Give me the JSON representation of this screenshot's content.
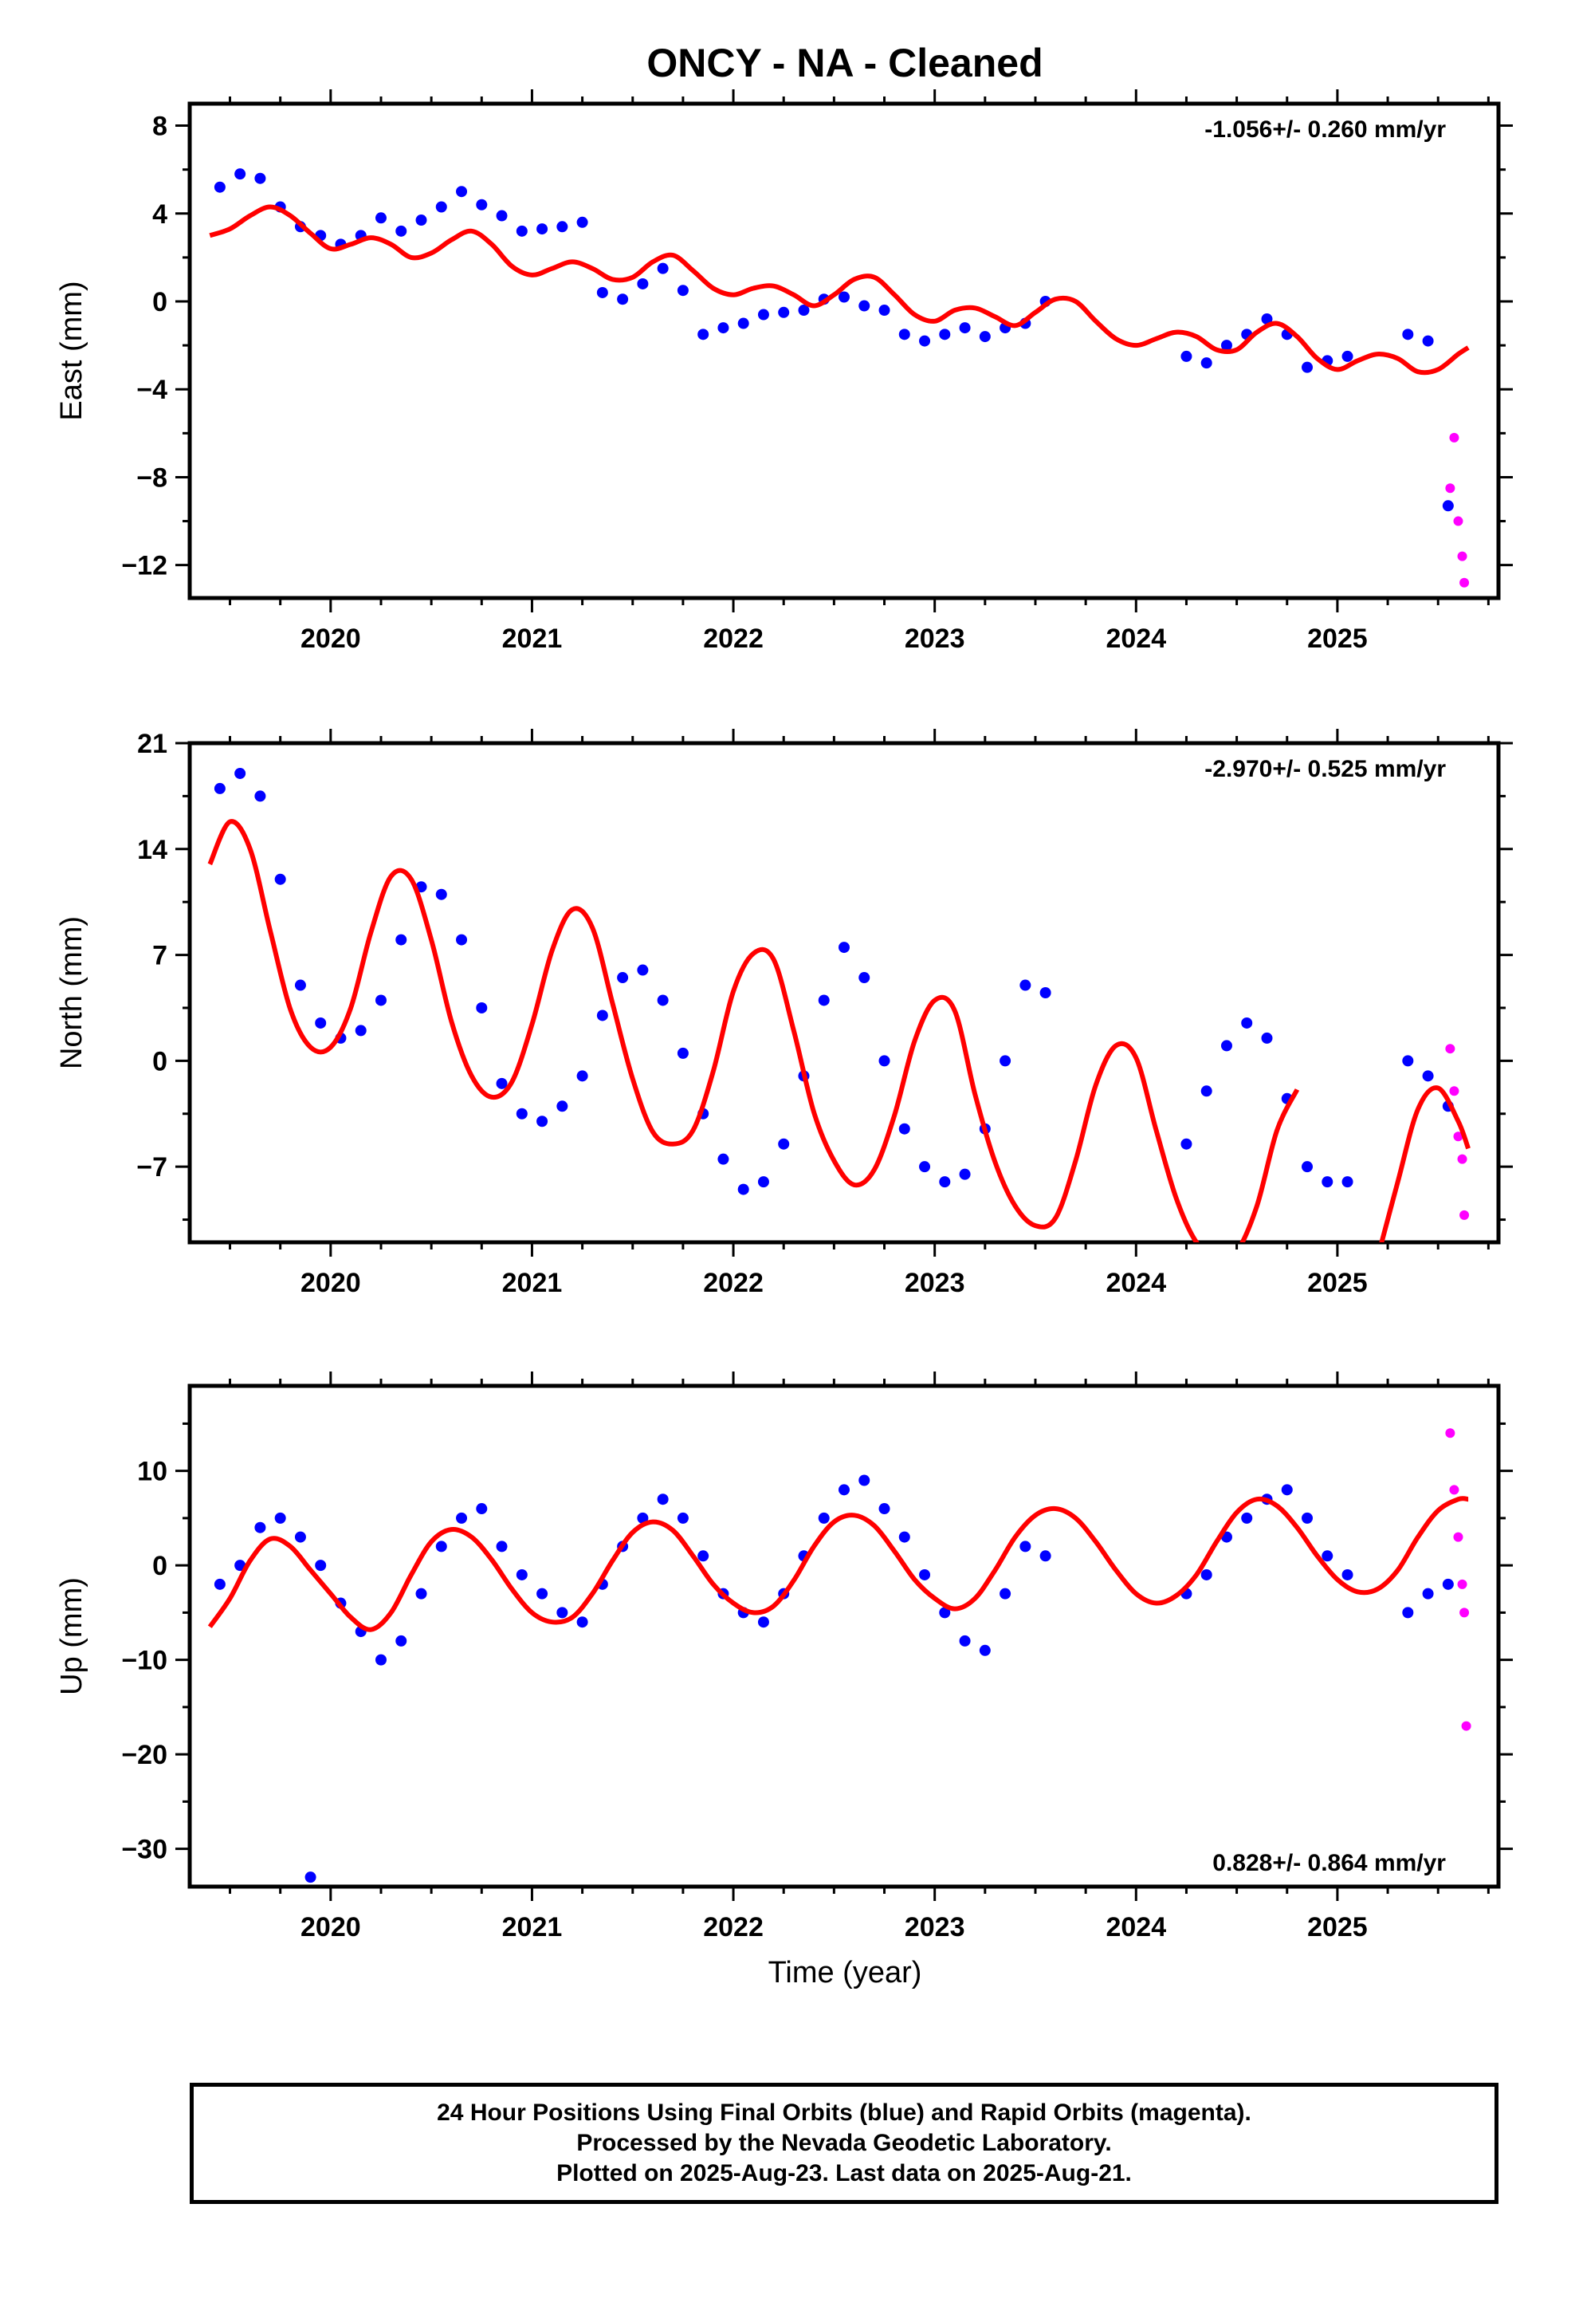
{
  "title": "ONCY  - NA - Cleaned",
  "xlabel": "Time (year)",
  "colors": {
    "final": "#0000ff",
    "rapid": "#ff00ff",
    "model": "#ff0000",
    "frame": "#000000"
  },
  "footer": {
    "line1": "24 Hour Positions Using Final Orbits (blue) and Rapid Orbits (magenta).",
    "line2": "Processed by the Nevada Geodetic Laboratory.",
    "line3": "Plotted on 2025-Aug-23. Last data on 2025-Aug-21."
  },
  "chart_data": [
    {
      "type": "scatter",
      "ylabel": "East (mm)",
      "rate_text": "-1.056+/- 0.260 mm/yr",
      "rate_position": "top-right",
      "xlim": [
        2019.3,
        2025.8
      ],
      "ylim": [
        -13.5,
        9
      ],
      "x_ticks": [
        2020,
        2021,
        2022,
        2023,
        2024,
        2025
      ],
      "y_ticks": [
        -12,
        -8,
        -4,
        0,
        4,
        8
      ],
      "y_tick_labels": [
        "−12",
        "−8",
        "−4",
        "0",
        "4",
        "8"
      ],
      "final_orbits": {
        "x": [
          2019.45,
          2019.55,
          2019.65,
          2019.75,
          2019.85,
          2019.95,
          2020.05,
          2020.15,
          2020.25,
          2020.35,
          2020.45,
          2020.55,
          2020.65,
          2020.75,
          2020.85,
          2020.95,
          2021.05,
          2021.15,
          2021.25,
          2021.35,
          2021.45,
          2021.55,
          2021.65,
          2021.75,
          2021.85,
          2021.95,
          2022.05,
          2022.15,
          2022.25,
          2022.35,
          2022.45,
          2022.55,
          2022.65,
          2022.75,
          2022.85,
          2022.95,
          2023.05,
          2023.15,
          2023.25,
          2023.35,
          2023.45,
          2023.55,
          2024.25,
          2024.35,
          2024.45,
          2024.55,
          2024.65,
          2024.75,
          2024.85,
          2024.95,
          2025.05,
          2025.35,
          2025.45,
          2025.55
        ],
        "y": [
          5.2,
          5.8,
          5.6,
          4.3,
          3.4,
          3.0,
          2.6,
          3.0,
          3.8,
          3.2,
          3.7,
          4.3,
          5.0,
          4.4,
          3.9,
          3.2,
          3.3,
          3.4,
          3.6,
          0.4,
          0.1,
          0.8,
          1.5,
          0.5,
          -1.5,
          -1.2,
          -1.0,
          -0.6,
          -0.5,
          -0.4,
          0.1,
          0.2,
          -0.2,
          -0.4,
          -1.5,
          -1.8,
          -1.5,
          -1.2,
          -1.6,
          -1.2,
          -1.0,
          0.0,
          -2.5,
          -2.8,
          -2.0,
          -1.5,
          -0.8,
          -1.5,
          -3.0,
          -2.7,
          -2.5,
          -1.5,
          -1.8,
          -9.3
        ]
      },
      "rapid_orbits": {
        "x": [
          2025.56,
          2025.58,
          2025.6,
          2025.62,
          2025.63
        ],
        "y": [
          -8.5,
          -6.2,
          -10.0,
          -11.6,
          -12.8
        ]
      },
      "model": {
        "x": [
          2019.4,
          2019.5,
          2019.6,
          2019.7,
          2019.8,
          2019.9,
          2020.0,
          2020.1,
          2020.2,
          2020.3,
          2020.4,
          2020.5,
          2020.6,
          2020.7,
          2020.8,
          2020.9,
          2021.0,
          2021.1,
          2021.2,
          2021.3,
          2021.4,
          2021.5,
          2021.6,
          2021.7,
          2021.8,
          2021.9,
          2022.0,
          2022.1,
          2022.2,
          2022.3,
          2022.4,
          2022.5,
          2022.6,
          2022.7,
          2022.8,
          2022.9,
          2023.0,
          2023.1,
          2023.2,
          2023.3,
          2023.4,
          2023.5,
          2023.6,
          2023.7,
          2023.8,
          2023.9,
          2024.0,
          2024.1,
          2024.2,
          2024.3,
          2024.4,
          2024.5,
          2024.6,
          2024.7,
          2024.8,
          2024.9,
          2025.0,
          2025.1,
          2025.2,
          2025.3,
          2025.4,
          2025.5,
          2025.6,
          2025.65
        ],
        "y": [
          3.0,
          3.3,
          3.9,
          4.3,
          3.9,
          3.1,
          2.4,
          2.6,
          2.9,
          2.6,
          2.0,
          2.2,
          2.8,
          3.2,
          2.6,
          1.6,
          1.2,
          1.5,
          1.8,
          1.5,
          1.0,
          1.1,
          1.8,
          2.1,
          1.4,
          0.6,
          0.3,
          0.6,
          0.7,
          0.3,
          -0.2,
          0.3,
          1.0,
          1.1,
          0.3,
          -0.6,
          -0.9,
          -0.4,
          -0.3,
          -0.7,
          -1.1,
          -0.5,
          0.1,
          0.0,
          -0.9,
          -1.7,
          -2.0,
          -1.7,
          -1.4,
          -1.6,
          -2.2,
          -2.2,
          -1.4,
          -1.0,
          -1.6,
          -2.6,
          -3.1,
          -2.7,
          -2.4,
          -2.6,
          -3.2,
          -3.1,
          -2.4,
          -2.1
        ]
      }
    },
    {
      "type": "scatter",
      "ylabel": "North (mm)",
      "rate_text": "-2.970+/- 0.525 mm/yr",
      "rate_position": "top-right",
      "xlim": [
        2019.3,
        2025.8
      ],
      "ylim": [
        -12,
        21
      ],
      "x_ticks": [
        2020,
        2021,
        2022,
        2023,
        2024,
        2025
      ],
      "y_ticks": [
        -7,
        0,
        7,
        14,
        21
      ],
      "y_tick_labels": [
        "−7",
        "0",
        "7",
        "14",
        "21"
      ],
      "final_orbits": {
        "x": [
          2019.45,
          2019.55,
          2019.65,
          2019.75,
          2019.85,
          2019.95,
          2020.05,
          2020.15,
          2020.25,
          2020.35,
          2020.45,
          2020.55,
          2020.65,
          2020.75,
          2020.85,
          2020.95,
          2021.05,
          2021.15,
          2021.25,
          2021.35,
          2021.45,
          2021.55,
          2021.65,
          2021.75,
          2021.85,
          2021.95,
          2022.05,
          2022.15,
          2022.25,
          2022.35,
          2022.45,
          2022.55,
          2022.65,
          2022.75,
          2022.85,
          2022.95,
          2023.05,
          2023.15,
          2023.25,
          2023.35,
          2023.45,
          2023.55,
          2024.25,
          2024.35,
          2024.45,
          2024.55,
          2024.65,
          2024.75,
          2024.85,
          2024.95,
          2025.05,
          2025.35,
          2025.45,
          2025.55
        ],
        "y": [
          18.0,
          19.0,
          17.5,
          12.0,
          5.0,
          2.5,
          1.5,
          2.0,
          4.0,
          8.0,
          11.5,
          11.0,
          8.0,
          3.5,
          -1.5,
          -3.5,
          -4.0,
          -3.0,
          -1.0,
          3.0,
          5.5,
          6.0,
          4.0,
          0.5,
          -3.5,
          -6.5,
          -8.5,
          -8.0,
          -5.5,
          -1.0,
          4.0,
          7.5,
          5.5,
          0.0,
          -4.5,
          -7.0,
          -8.0,
          -7.5,
          -4.5,
          0.0,
          5.0,
          4.5,
          -5.5,
          -2.0,
          1.0,
          2.5,
          1.5,
          -2.5,
          -7.0,
          -8.0,
          -8.0,
          0.0,
          -1.0,
          -3.0
        ]
      },
      "rapid_orbits": {
        "x": [
          2025.56,
          2025.58,
          2025.6,
          2025.62,
          2025.63
        ],
        "y": [
          0.8,
          -2.0,
          -5.0,
          -6.5,
          -10.2
        ]
      },
      "model": {
        "x": [
          2019.4,
          2019.5,
          2019.6,
          2019.7,
          2019.8,
          2019.9,
          2020.0,
          2020.1,
          2020.2,
          2020.3,
          2020.4,
          2020.5,
          2020.6,
          2020.7,
          2020.8,
          2020.9,
          2021.0,
          2021.1,
          2021.2,
          2021.3,
          2021.4,
          2021.5,
          2021.6,
          2021.7,
          2021.8,
          2021.9,
          2022.0,
          2022.1,
          2022.2,
          2022.3,
          2022.4,
          2022.5,
          2022.6,
          2022.7,
          2022.8,
          2022.9,
          2023.0,
          2023.1,
          2023.2,
          2023.3,
          2023.4,
          2023.5,
          2023.6,
          2023.7,
          2023.8,
          2023.9,
          2024.0,
          2024.1,
          2024.2,
          2024.3,
          2024.4,
          2024.5,
          2024.6,
          2024.7,
          2024.8
        ],
        "y": [
          13.0,
          15.8,
          14.0,
          8.6,
          3.4,
          0.9,
          0.9,
          3.5,
          8.5,
          12.2,
          12.0,
          8.0,
          2.6,
          -1.0,
          -2.4,
          -1.4,
          2.4,
          7.3,
          10.0,
          8.8,
          3.8,
          -1.2,
          -4.7,
          -5.5,
          -4.6,
          -0.7,
          4.6,
          7.1,
          6.7,
          2.0,
          -3.4,
          -6.6,
          -8.2,
          -7.2,
          -3.6,
          1.3,
          4.0,
          3.3,
          -2.2,
          -6.7,
          -9.6,
          -10.9,
          -10.4,
          -6.6,
          -1.6,
          1.0,
          0.2,
          -4.6,
          -9.1,
          -12.0,
          -13.0,
          -12.6,
          -9.6,
          -4.6,
          -1.9
        ]
      },
      "model_segment2": {
        "x": [
          2025.2,
          2025.3,
          2025.4,
          2025.5,
          2025.6,
          2025.65
        ],
        "y": [
          -13.0,
          -8.0,
          -3.2,
          -1.8,
          -4.0,
          -5.8
        ]
      }
    },
    {
      "type": "scatter",
      "ylabel": "Up (mm)",
      "rate_text": "0.828+/- 0.864 mm/yr",
      "rate_position": "bottom-right",
      "xlim": [
        2019.3,
        2025.8
      ],
      "ylim": [
        -34,
        19
      ],
      "x_ticks": [
        2020,
        2021,
        2022,
        2023,
        2024,
        2025
      ],
      "y_ticks": [
        -30,
        -20,
        -10,
        0,
        10
      ],
      "y_tick_labels": [
        "−30",
        "−20",
        "−10",
        "0",
        "10"
      ],
      "final_orbits": {
        "x": [
          2019.45,
          2019.55,
          2019.65,
          2019.75,
          2019.85,
          2019.95,
          2020.05,
          2020.15,
          2020.25,
          2020.35,
          2020.45,
          2020.55,
          2020.65,
          2020.75,
          2020.85,
          2020.95,
          2021.05,
          2021.15,
          2021.25,
          2021.35,
          2021.45,
          2021.55,
          2021.65,
          2021.75,
          2021.85,
          2021.95,
          2022.05,
          2022.15,
          2022.25,
          2022.35,
          2022.45,
          2022.55,
          2022.65,
          2022.75,
          2022.85,
          2022.95,
          2023.05,
          2023.15,
          2023.25,
          2023.35,
          2023.45,
          2023.55,
          2024.25,
          2024.35,
          2024.45,
          2024.55,
          2024.65,
          2024.75,
          2024.85,
          2024.95,
          2025.05,
          2025.35,
          2025.45,
          2025.55,
          2019.9
        ],
        "y": [
          -2,
          0,
          4,
          5,
          3,
          0,
          -4,
          -7,
          -10,
          -8,
          -3,
          2,
          5,
          6,
          2,
          -1,
          -3,
          -5,
          -6,
          -2,
          2,
          5,
          7,
          5,
          1,
          -3,
          -5,
          -6,
          -3,
          1,
          5,
          8,
          9,
          6,
          3,
          -1,
          -5,
          -8,
          -9,
          -3,
          2,
          1,
          -3,
          -1,
          3,
          5,
          7,
          8,
          5,
          1,
          -1,
          -5,
          -3,
          -2,
          -33
        ]
      },
      "rapid_orbits": {
        "x": [
          2025.56,
          2025.58,
          2025.6,
          2025.62,
          2025.63,
          2025.64
        ],
        "y": [
          14,
          8,
          3,
          -2,
          -5,
          -17
        ]
      },
      "model": {
        "x": [
          2019.4,
          2019.5,
          2019.6,
          2019.7,
          2019.8,
          2019.9,
          2020.0,
          2020.1,
          2020.2,
          2020.3,
          2020.4,
          2020.5,
          2020.6,
          2020.7,
          2020.8,
          2020.9,
          2021.0,
          2021.1,
          2021.2,
          2021.3,
          2021.4,
          2021.5,
          2021.6,
          2021.7,
          2021.8,
          2021.9,
          2022.0,
          2022.1,
          2022.2,
          2022.3,
          2022.4,
          2022.5,
          2022.6,
          2022.7,
          2022.8,
          2022.9,
          2023.0,
          2023.1,
          2023.2,
          2023.3,
          2023.4,
          2023.5,
          2023.6,
          2023.7,
          2023.8,
          2023.9,
          2024.0,
          2024.1,
          2024.2,
          2024.3,
          2024.4,
          2024.5,
          2024.6,
          2024.7,
          2024.8,
          2024.9,
          2025.0,
          2025.1,
          2025.2,
          2025.3,
          2025.4,
          2025.5,
          2025.6,
          2025.65
        ],
        "y": [
          -6.5,
          -3.5,
          0.5,
          2.8,
          2.0,
          -0.5,
          -3.0,
          -5.5,
          -6.8,
          -5.0,
          -1.0,
          2.5,
          3.8,
          3.0,
          0.6,
          -2.5,
          -5.0,
          -6.0,
          -5.5,
          -3.0,
          0.5,
          3.5,
          4.6,
          3.7,
          1.0,
          -2.0,
          -4.0,
          -5.0,
          -4.3,
          -1.6,
          2.0,
          4.6,
          5.3,
          4.2,
          1.5,
          -1.5,
          -3.5,
          -4.6,
          -3.5,
          -0.5,
          3.0,
          5.3,
          6.0,
          5.0,
          2.5,
          -0.5,
          -3.0,
          -4.0,
          -3.2,
          -1.0,
          2.5,
          5.6,
          7.0,
          6.3,
          4.0,
          1.0,
          -1.5,
          -2.8,
          -2.5,
          -0.5,
          3.0,
          5.8,
          7.0,
          7.0
        ]
      }
    }
  ]
}
